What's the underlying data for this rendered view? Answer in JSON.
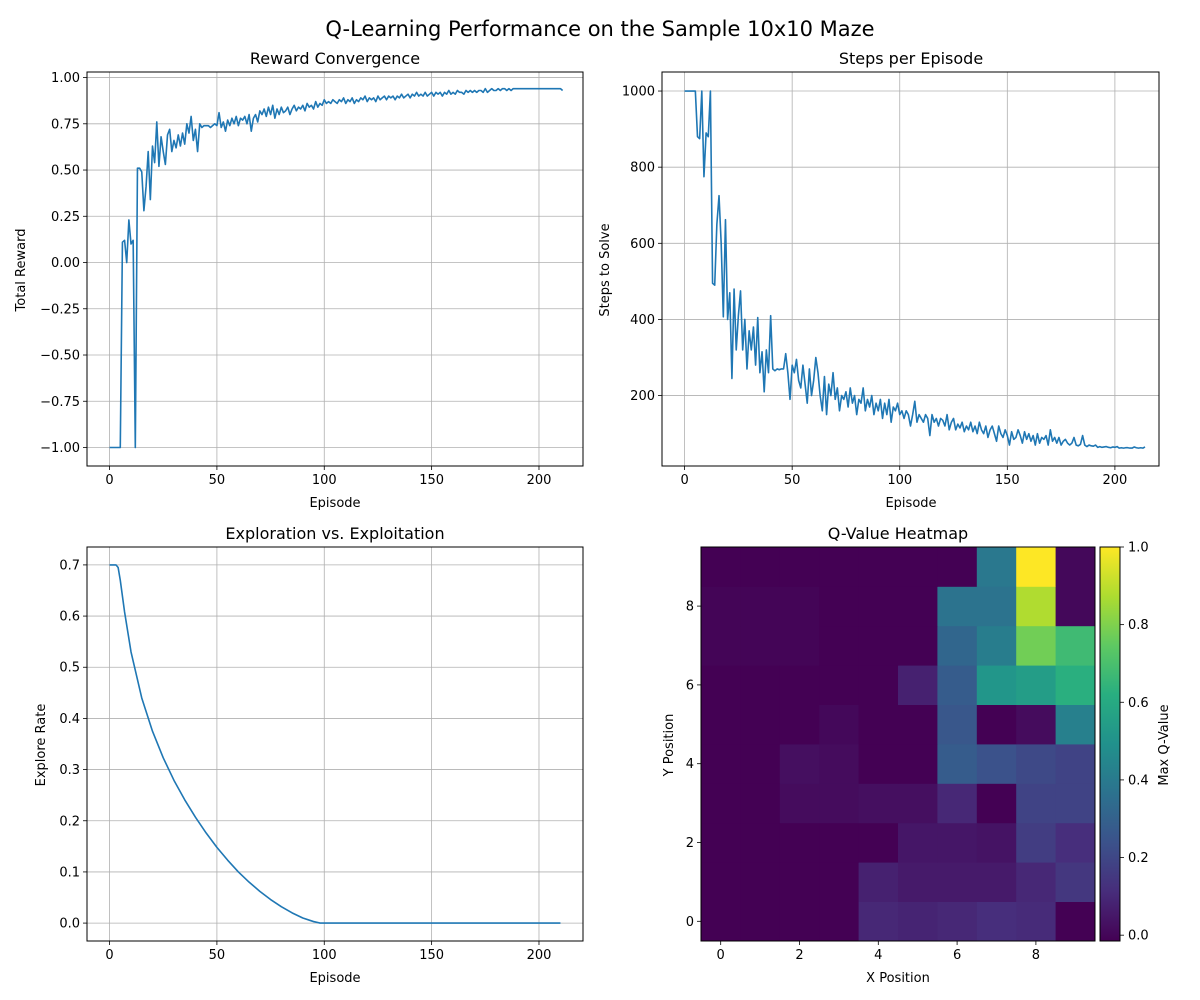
{
  "figure": {
    "suptitle": "Q-Learning Performance on the Sample 10x10 Maze"
  },
  "colors": {
    "line": "#1f77b4",
    "grid": "#b0b0b0",
    "axes": "#000000",
    "background": "#ffffff"
  },
  "chart_data": [
    {
      "type": "line",
      "title": "Reward Convergence",
      "xlabel": "Episode",
      "ylabel": "Total Reward",
      "grid": true,
      "xlim": [
        -10.5,
        220.5
      ],
      "ylim": [
        -1.1,
        1.03
      ],
      "xticks": [
        0,
        50,
        100,
        150,
        200
      ],
      "yticks": [
        -1.0,
        -0.75,
        -0.5,
        -0.25,
        0.0,
        0.25,
        0.5,
        0.75,
        1.0
      ],
      "ytick_labels": [
        "−1.00",
        "−0.75",
        "−0.50",
        "−0.25",
        "0.00",
        "0.25",
        "0.50",
        "0.75",
        "1.00"
      ],
      "series": [
        {
          "x_start": 0,
          "x_step": 1,
          "values": [
            -1.0,
            -1.0,
            -1.0,
            -1.0,
            -1.0,
            -1.0,
            0.11,
            0.12,
            0.0,
            0.23,
            0.1,
            0.12,
            -1.0,
            0.51,
            0.51,
            0.49,
            0.28,
            0.41,
            0.6,
            0.34,
            0.63,
            0.54,
            0.76,
            0.52,
            0.68,
            0.6,
            0.53,
            0.69,
            0.72,
            0.6,
            0.66,
            0.62,
            0.69,
            0.63,
            0.7,
            0.64,
            0.75,
            0.7,
            0.79,
            0.66,
            0.72,
            0.6,
            0.75,
            0.73,
            0.74,
            0.74,
            0.74,
            0.73,
            0.74,
            0.75,
            0.74,
            0.81,
            0.73,
            0.76,
            0.71,
            0.77,
            0.74,
            0.78,
            0.75,
            0.79,
            0.74,
            0.78,
            0.77,
            0.79,
            0.75,
            0.8,
            0.71,
            0.78,
            0.8,
            0.76,
            0.82,
            0.8,
            0.83,
            0.79,
            0.84,
            0.8,
            0.85,
            0.78,
            0.83,
            0.8,
            0.84,
            0.81,
            0.82,
            0.84,
            0.8,
            0.83,
            0.85,
            0.82,
            0.84,
            0.83,
            0.85,
            0.82,
            0.86,
            0.84,
            0.85,
            0.83,
            0.87,
            0.84,
            0.86,
            0.85,
            0.88,
            0.86,
            0.87,
            0.86,
            0.88,
            0.87,
            0.86,
            0.88,
            0.87,
            0.89,
            0.86,
            0.88,
            0.87,
            0.89,
            0.86,
            0.88,
            0.87,
            0.89,
            0.88,
            0.9,
            0.87,
            0.89,
            0.88,
            0.89,
            0.87,
            0.9,
            0.88,
            0.89,
            0.9,
            0.88,
            0.9,
            0.89,
            0.9,
            0.88,
            0.9,
            0.89,
            0.91,
            0.89,
            0.9,
            0.91,
            0.89,
            0.91,
            0.9,
            0.92,
            0.9,
            0.91,
            0.9,
            0.92,
            0.9,
            0.91,
            0.92,
            0.9,
            0.92,
            0.91,
            0.92,
            0.9,
            0.92,
            0.91,
            0.93,
            0.91,
            0.92,
            0.91,
            0.93,
            0.92,
            0.92,
            0.91,
            0.93,
            0.92,
            0.93,
            0.92,
            0.93,
            0.92,
            0.93,
            0.93,
            0.92,
            0.94,
            0.92,
            0.93,
            0.94,
            0.93,
            0.93,
            0.94,
            0.93,
            0.94,
            0.94,
            0.93,
            0.94,
            0.93,
            0.94,
            0.94,
            0.94,
            0.94,
            0.94,
            0.94,
            0.94,
            0.94,
            0.94,
            0.94,
            0.94,
            0.94,
            0.94,
            0.94,
            0.94,
            0.94,
            0.94,
            0.94,
            0.94,
            0.94,
            0.94,
            0.94,
            0.94,
            0.93
          ]
        }
      ]
    },
    {
      "type": "line",
      "title": "Steps per Episode",
      "xlabel": "Episode",
      "ylabel": "Steps to Solve",
      "grid": true,
      "xlim": [
        -10.5,
        220.5
      ],
      "ylim": [
        15,
        1050
      ],
      "xticks": [
        0,
        50,
        100,
        150,
        200
      ],
      "yticks": [
        200,
        400,
        600,
        800,
        1000
      ],
      "ytick_labels": [
        "200",
        "400",
        "600",
        "800",
        "1000"
      ],
      "series": [
        {
          "x_start": 0,
          "x_step": 1,
          "values": [
            1000,
            1000,
            1000,
            1000,
            1000,
            1000,
            880,
            875,
            1000,
            775,
            890,
            880,
            1000,
            495,
            490,
            650,
            725,
            600,
            407,
            662,
            400,
            470,
            245,
            480,
            320,
            410,
            475,
            320,
            400,
            270,
            370,
            320,
            380,
            280,
            405,
            260,
            315,
            210,
            320,
            260,
            410,
            270,
            265,
            270,
            268,
            270,
            270,
            310,
            260,
            190,
            280,
            260,
            295,
            240,
            220,
            280,
            230,
            180,
            270,
            200,
            240,
            300,
            260,
            200,
            160,
            250,
            150,
            230,
            200,
            260,
            190,
            220,
            160,
            200,
            190,
            210,
            170,
            220,
            180,
            200,
            150,
            190,
            180,
            220,
            160,
            190,
            170,
            200,
            150,
            180,
            160,
            190,
            140,
            180,
            150,
            190,
            130,
            170,
            160,
            180,
            150,
            160,
            140,
            160,
            150,
            120,
            150,
            185,
            130,
            150,
            140,
            130,
            150,
            140,
            95,
            150,
            130,
            140,
            120,
            140,
            135,
            120,
            150,
            110,
            130,
            140,
            110,
            125,
            115,
            130,
            105,
            120,
            110,
            130,
            105,
            120,
            100,
            130,
            110,
            100,
            120,
            90,
            110,
            120,
            100,
            80,
            120,
            100,
            90,
            110,
            95,
            70,
            105,
            85,
            90,
            110,
            95,
            75,
            105,
            85,
            100,
            80,
            95,
            70,
            100,
            75,
            90,
            85,
            95,
            70,
            110,
            80,
            90,
            75,
            90,
            70,
            80,
            85,
            75,
            70,
            75,
            90,
            70,
            68,
            72,
            95,
            70,
            66,
            70,
            68,
            67,
            70,
            64,
            66,
            64,
            65,
            66,
            64,
            63,
            65,
            64,
            66,
            62,
            63,
            62,
            63,
            63,
            62,
            62,
            65,
            63,
            62,
            63,
            62,
            65
          ]
        }
      ]
    },
    {
      "type": "line",
      "title": "Exploration vs. Exploitation",
      "xlabel": "Episode",
      "ylabel": "Explore Rate",
      "grid": true,
      "xlim": [
        -10.5,
        220.5
      ],
      "ylim": [
        -0.035,
        0.735
      ],
      "xticks": [
        0,
        50,
        100,
        150,
        200
      ],
      "yticks": [
        0.0,
        0.1,
        0.2,
        0.3,
        0.4,
        0.5,
        0.6,
        0.7
      ],
      "ytick_labels": [
        "0.0",
        "0.1",
        "0.2",
        "0.3",
        "0.4",
        "0.5",
        "0.6",
        "0.7"
      ],
      "series": [
        {
          "points": [
            [
              0,
              0.7
            ],
            [
              2,
              0.7
            ],
            [
              3,
              0.7
            ],
            [
              4,
              0.695
            ],
            [
              5,
              0.67
            ],
            [
              7,
              0.608
            ],
            [
              10,
              0.53
            ],
            [
              15,
              0.44
            ],
            [
              20,
              0.375
            ],
            [
              25,
              0.323
            ],
            [
              30,
              0.279
            ],
            [
              35,
              0.241
            ],
            [
              40,
              0.207
            ],
            [
              45,
              0.176
            ],
            [
              50,
              0.148
            ],
            [
              55,
              0.123
            ],
            [
              60,
              0.1
            ],
            [
              65,
              0.08
            ],
            [
              70,
              0.062
            ],
            [
              75,
              0.046
            ],
            [
              80,
              0.032
            ],
            [
              85,
              0.02
            ],
            [
              90,
              0.01
            ],
            [
              95,
              0.003
            ],
            [
              98,
              0.0
            ],
            [
              100,
              0.0
            ],
            [
              150,
              0.0
            ],
            [
              210,
              0.0
            ]
          ]
        }
      ]
    },
    {
      "type": "heatmap",
      "title": "Q-Value Heatmap",
      "xlabel": "X Position",
      "ylabel": "Y Position",
      "xlim": [
        -0.5,
        9.5
      ],
      "ylim": [
        -0.5,
        9.5
      ],
      "xticks": [
        0,
        2,
        4,
        6,
        8
      ],
      "yticks": [
        0,
        2,
        4,
        6,
        8
      ],
      "colorbar": {
        "label": "Max Q-Value",
        "min": 0.0,
        "max": 1.0,
        "ticks": [
          0.0,
          0.2,
          0.4,
          0.6,
          0.8,
          1.0
        ],
        "tick_labels": [
          "0.0",
          "0.2",
          "0.4",
          "0.6",
          "0.8",
          "1.0"
        ],
        "colormap": "viridis"
      },
      "grid_values_by_row_y0_to_y9": [
        [
          0.0,
          0.0,
          0.0,
          0.0,
          0.11,
          0.1,
          0.11,
          0.13,
          0.12,
          0.0
        ],
        [
          0.0,
          0.0,
          0.0,
          0.0,
          0.09,
          0.07,
          0.07,
          0.07,
          0.11,
          0.16
        ],
        [
          0.0,
          0.0,
          0.0,
          0.0,
          0.0,
          0.06,
          0.06,
          0.05,
          0.18,
          0.13
        ],
        [
          0.0,
          0.0,
          0.03,
          0.03,
          0.04,
          0.04,
          0.11,
          0.0,
          0.2,
          0.2
        ],
        [
          0.0,
          0.0,
          0.04,
          0.03,
          0.0,
          0.0,
          0.29,
          0.25,
          0.22,
          0.2
        ],
        [
          0.0,
          0.0,
          0.0,
          0.02,
          0.0,
          0.0,
          0.27,
          0.0,
          0.03,
          0.43
        ],
        [
          0.0,
          0.0,
          0.0,
          0.0,
          0.0,
          0.09,
          0.29,
          0.52,
          0.55,
          0.63
        ],
        [
          0.01,
          0.01,
          0.01,
          0.0,
          0.0,
          0.0,
          0.33,
          0.42,
          0.78,
          0.68
        ],
        [
          0.01,
          0.01,
          0.01,
          0.0,
          0.0,
          0.0,
          0.38,
          0.38,
          0.88,
          0.02
        ],
        [
          0.0,
          0.0,
          0.0,
          0.0,
          0.0,
          0.0,
          0.0,
          0.4,
          1.0,
          0.02
        ]
      ]
    }
  ]
}
